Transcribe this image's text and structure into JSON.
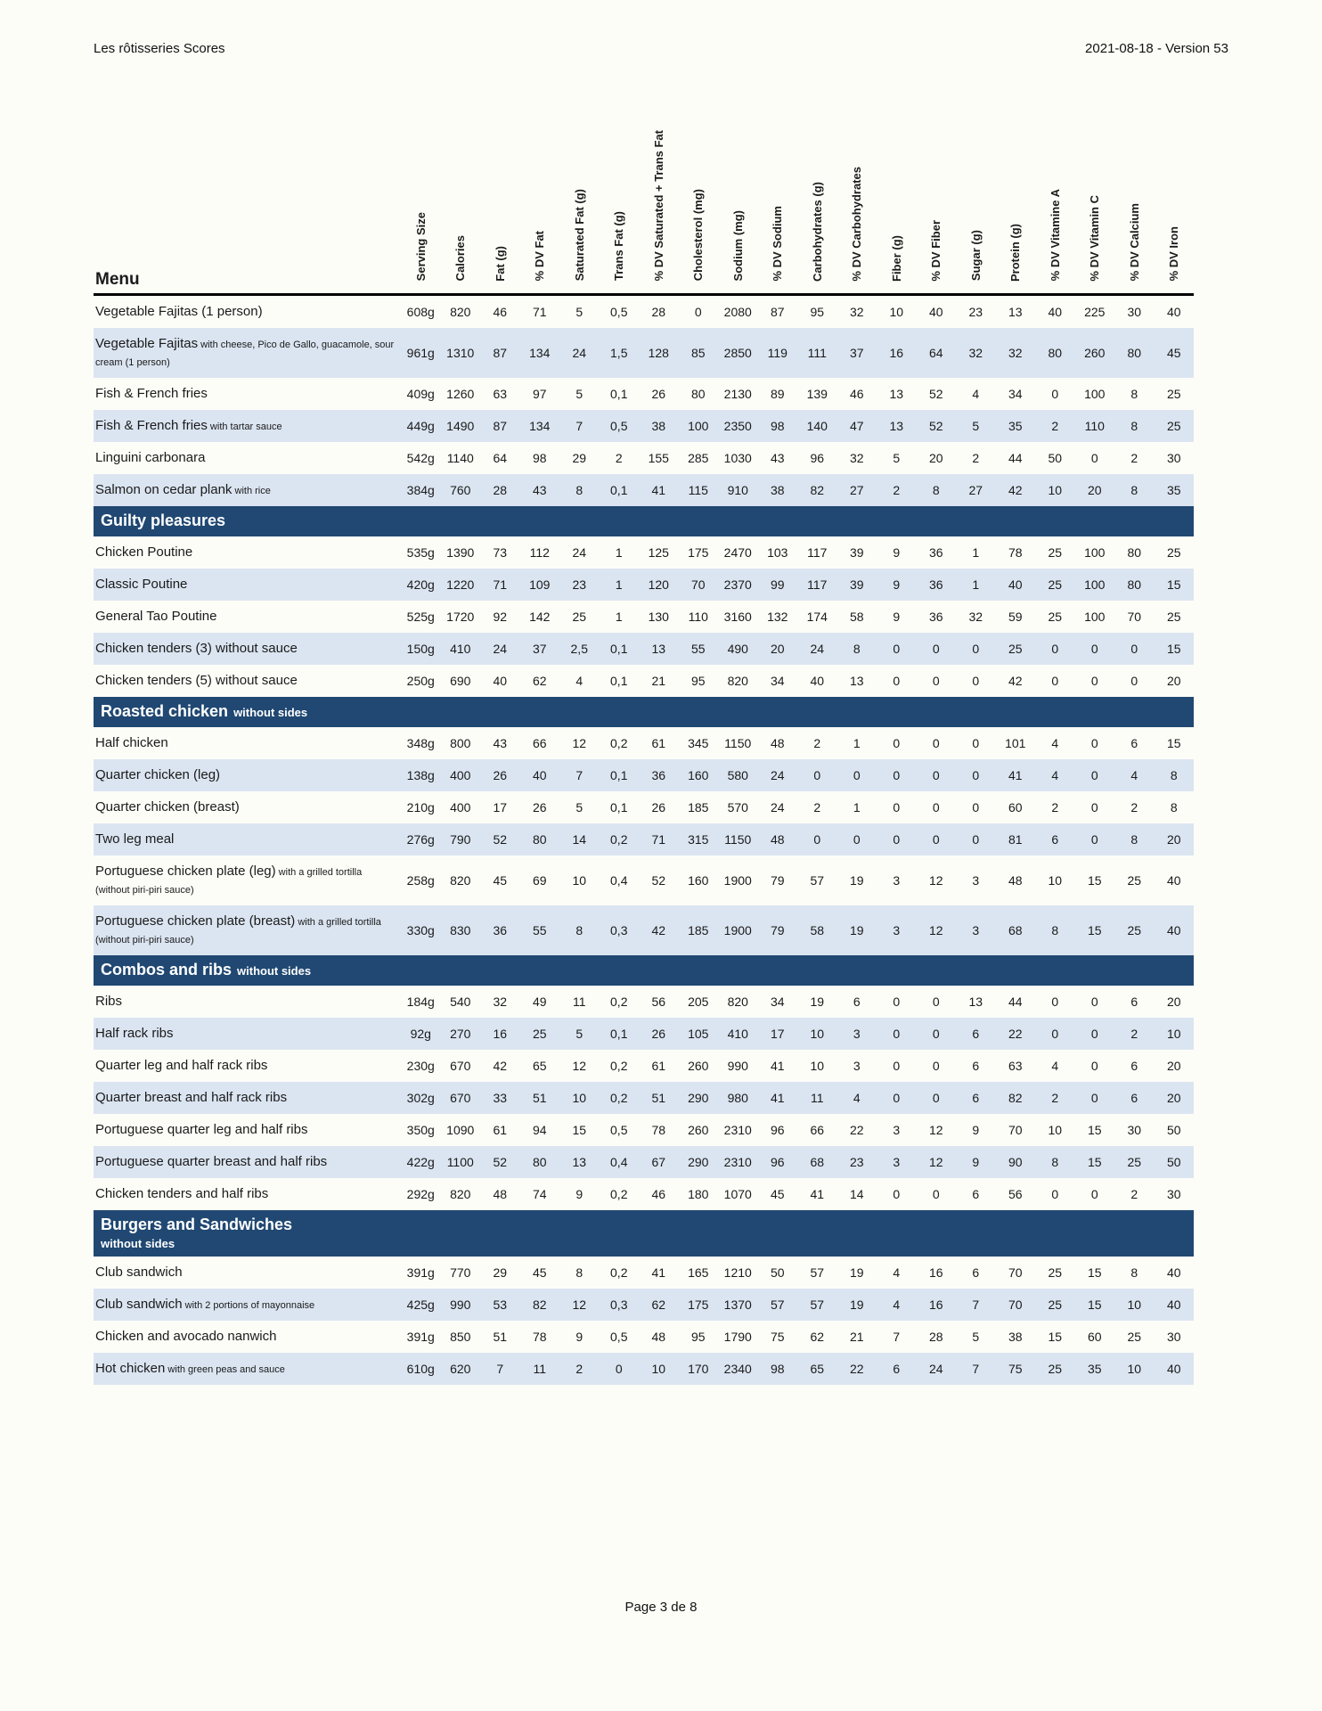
{
  "page_header": {
    "title": "Les rôtisseries Scores",
    "date_version": "2021-08-18 - Version 53"
  },
  "table": {
    "menu_label": "Menu",
    "columns": [
      "Serving Size",
      "Calories",
      "Fat (g)",
      "% DV Fat",
      "Saturated Fat (g)",
      "Trans Fat (g)",
      "% DV Saturated + Trans Fat",
      "Cholesterol (mg)",
      "Sodium (mg)",
      "% DV Sodium",
      "Carbohydrates (g)",
      "% DV Carbohydrates",
      "Fiber (g)",
      "% DV Fiber",
      "Sugar (g)",
      "Protein (g)",
      "% DV Vitamine A",
      "% DV Vitamin C",
      "% DV Calcium",
      "% DV Iron"
    ],
    "sections": [
      {
        "header": null,
        "rows": [
          {
            "name": "Vegetable Fajitas (1 person)",
            "note": "",
            "values": [
              "608g",
              "820",
              "46",
              "71",
              "5",
              "0,5",
              "28",
              "0",
              "2080",
              "87",
              "95",
              "32",
              "10",
              "40",
              "23",
              "13",
              "40",
              "225",
              "30",
              "40"
            ]
          },
          {
            "name": "Vegetable Fajitas",
            "note": "with cheese, Pico de Gallo, guacamole, sour cream (1 person)",
            "values": [
              "961g",
              "1310",
              "87",
              "134",
              "24",
              "1,5",
              "128",
              "85",
              "2850",
              "119",
              "111",
              "37",
              "16",
              "64",
              "32",
              "32",
              "80",
              "260",
              "80",
              "45"
            ]
          },
          {
            "name": "Fish & French fries",
            "note": "",
            "values": [
              "409g",
              "1260",
              "63",
              "97",
              "5",
              "0,1",
              "26",
              "80",
              "2130",
              "89",
              "139",
              "46",
              "13",
              "52",
              "4",
              "34",
              "0",
              "100",
              "8",
              "25"
            ]
          },
          {
            "name": "Fish & French fries",
            "note": "with tartar sauce",
            "values": [
              "449g",
              "1490",
              "87",
              "134",
              "7",
              "0,5",
              "38",
              "100",
              "2350",
              "98",
              "140",
              "47",
              "13",
              "52",
              "5",
              "35",
              "2",
              "110",
              "8",
              "25"
            ]
          },
          {
            "name": "Linguini carbonara",
            "note": "",
            "values": [
              "542g",
              "1140",
              "64",
              "98",
              "29",
              "2",
              "155",
              "285",
              "1030",
              "43",
              "96",
              "32",
              "5",
              "20",
              "2",
              "44",
              "50",
              "0",
              "2",
              "30"
            ]
          },
          {
            "name": "Salmon on cedar plank",
            "note": "with rice",
            "values": [
              "384g",
              "760",
              "28",
              "43",
              "8",
              "0,1",
              "41",
              "115",
              "910",
              "38",
              "82",
              "27",
              "2",
              "8",
              "27",
              "42",
              "10",
              "20",
              "8",
              "35"
            ]
          }
        ]
      },
      {
        "header": {
          "title": "Guilty pleasures",
          "suffix": "",
          "two_lines": false
        },
        "rows": [
          {
            "name": "Chicken Poutine",
            "note": "",
            "values": [
              "535g",
              "1390",
              "73",
              "112",
              "24",
              "1",
              "125",
              "175",
              "2470",
              "103",
              "117",
              "39",
              "9",
              "36",
              "1",
              "78",
              "25",
              "100",
              "80",
              "25"
            ]
          },
          {
            "name": "Classic Poutine",
            "note": "",
            "values": [
              "420g",
              "1220",
              "71",
              "109",
              "23",
              "1",
              "120",
              "70",
              "2370",
              "99",
              "117",
              "39",
              "9",
              "36",
              "1",
              "40",
              "25",
              "100",
              "80",
              "15"
            ]
          },
          {
            "name": "General Tao Poutine",
            "note": "",
            "values": [
              "525g",
              "1720",
              "92",
              "142",
              "25",
              "1",
              "130",
              "110",
              "3160",
              "132",
              "174",
              "58",
              "9",
              "36",
              "32",
              "59",
              "25",
              "100",
              "70",
              "25"
            ]
          },
          {
            "name": "Chicken tenders (3) without sauce",
            "note": "",
            "values": [
              "150g",
              "410",
              "24",
              "37",
              "2,5",
              "0,1",
              "13",
              "55",
              "490",
              "20",
              "24",
              "8",
              "0",
              "0",
              "0",
              "25",
              "0",
              "0",
              "0",
              "15"
            ]
          },
          {
            "name": "Chicken tenders (5) without sauce",
            "note": "",
            "values": [
              "250g",
              "690",
              "40",
              "62",
              "4",
              "0,1",
              "21",
              "95",
              "820",
              "34",
              "40",
              "13",
              "0",
              "0",
              "0",
              "42",
              "0",
              "0",
              "0",
              "20"
            ]
          }
        ]
      },
      {
        "header": {
          "title": "Roasted chicken",
          "suffix": "without sides",
          "two_lines": false
        },
        "rows": [
          {
            "name": "Half chicken",
            "note": "",
            "values": [
              "348g",
              "800",
              "43",
              "66",
              "12",
              "0,2",
              "61",
              "345",
              "1150",
              "48",
              "2",
              "1",
              "0",
              "0",
              "0",
              "101",
              "4",
              "0",
              "6",
              "15"
            ]
          },
          {
            "name": "Quarter chicken (leg)",
            "note": "",
            "values": [
              "138g",
              "400",
              "26",
              "40",
              "7",
              "0,1",
              "36",
              "160",
              "580",
              "24",
              "0",
              "0",
              "0",
              "0",
              "0",
              "41",
              "4",
              "0",
              "4",
              "8"
            ]
          },
          {
            "name": "Quarter chicken (breast)",
            "note": "",
            "values": [
              "210g",
              "400",
              "17",
              "26",
              "5",
              "0,1",
              "26",
              "185",
              "570",
              "24",
              "2",
              "1",
              "0",
              "0",
              "0",
              "60",
              "2",
              "0",
              "2",
              "8"
            ]
          },
          {
            "name": "Two leg meal",
            "note": "",
            "values": [
              "276g",
              "790",
              "52",
              "80",
              "14",
              "0,2",
              "71",
              "315",
              "1150",
              "48",
              "0",
              "0",
              "0",
              "0",
              "0",
              "81",
              "6",
              "0",
              "8",
              "20"
            ]
          },
          {
            "name": "Portuguese chicken plate (leg)",
            "note": "with a grilled tortilla (without piri-piri sauce)",
            "values": [
              "258g",
              "820",
              "45",
              "69",
              "10",
              "0,4",
              "52",
              "160",
              "1900",
              "79",
              "57",
              "19",
              "3",
              "12",
              "3",
              "48",
              "10",
              "15",
              "25",
              "40"
            ]
          },
          {
            "name": "Portuguese chicken plate (breast)",
            "note": "with a grilled tortilla (without piri-piri sauce)",
            "values": [
              "330g",
              "830",
              "36",
              "55",
              "8",
              "0,3",
              "42",
              "185",
              "1900",
              "79",
              "58",
              "19",
              "3",
              "12",
              "3",
              "68",
              "8",
              "15",
              "25",
              "40"
            ]
          }
        ]
      },
      {
        "header": {
          "title": "Combos and ribs",
          "suffix": "without sides",
          "two_lines": false
        },
        "rows": [
          {
            "name": "Ribs",
            "note": "",
            "values": [
              "184g",
              "540",
              "32",
              "49",
              "11",
              "0,2",
              "56",
              "205",
              "820",
              "34",
              "19",
              "6",
              "0",
              "0",
              "13",
              "44",
              "0",
              "0",
              "6",
              "20"
            ]
          },
          {
            "name": "Half rack ribs",
            "note": "",
            "values": [
              "92g",
              "270",
              "16",
              "25",
              "5",
              "0,1",
              "26",
              "105",
              "410",
              "17",
              "10",
              "3",
              "0",
              "0",
              "6",
              "22",
              "0",
              "0",
              "2",
              "10"
            ]
          },
          {
            "name": "Quarter leg and half rack ribs",
            "note": "",
            "values": [
              "230g",
              "670",
              "42",
              "65",
              "12",
              "0,2",
              "61",
              "260",
              "990",
              "41",
              "10",
              "3",
              "0",
              "0",
              "6",
              "63",
              "4",
              "0",
              "6",
              "20"
            ]
          },
          {
            "name": "Quarter breast and half rack ribs",
            "note": "",
            "values": [
              "302g",
              "670",
              "33",
              "51",
              "10",
              "0,2",
              "51",
              "290",
              "980",
              "41",
              "11",
              "4",
              "0",
              "0",
              "6",
              "82",
              "2",
              "0",
              "6",
              "20"
            ]
          },
          {
            "name": "Portuguese quarter leg and half ribs",
            "note": "",
            "values": [
              "350g",
              "1090",
              "61",
              "94",
              "15",
              "0,5",
              "78",
              "260",
              "2310",
              "96",
              "66",
              "22",
              "3",
              "12",
              "9",
              "70",
              "10",
              "15",
              "30",
              "50"
            ]
          },
          {
            "name": "Portuguese quarter breast and half ribs",
            "note": "",
            "values": [
              "422g",
              "1100",
              "52",
              "80",
              "13",
              "0,4",
              "67",
              "290",
              "2310",
              "96",
              "68",
              "23",
              "3",
              "12",
              "9",
              "90",
              "8",
              "15",
              "25",
              "50"
            ]
          },
          {
            "name": "Chicken tenders and half ribs",
            "note": "",
            "values": [
              "292g",
              "820",
              "48",
              "74",
              "9",
              "0,2",
              "46",
              "180",
              "1070",
              "45",
              "41",
              "14",
              "0",
              "0",
              "6",
              "56",
              "0",
              "0",
              "2",
              "30"
            ]
          }
        ]
      },
      {
        "header": {
          "title": "Burgers and Sandwiches",
          "suffix": "without sides",
          "two_lines": true
        },
        "rows": [
          {
            "name": "Club sandwich",
            "note": "",
            "values": [
              "391g",
              "770",
              "29",
              "45",
              "8",
              "0,2",
              "41",
              "165",
              "1210",
              "50",
              "57",
              "19",
              "4",
              "16",
              "6",
              "70",
              "25",
              "15",
              "8",
              "40"
            ]
          },
          {
            "name": "Club sandwich",
            "note": "with 2 portions of mayonnaise",
            "values": [
              "425g",
              "990",
              "53",
              "82",
              "12",
              "0,3",
              "62",
              "175",
              "1370",
              "57",
              "57",
              "19",
              "4",
              "16",
              "7",
              "70",
              "25",
              "15",
              "10",
              "40"
            ]
          },
          {
            "name": "Chicken and avocado nanwich",
            "note": "",
            "values": [
              "391g",
              "850",
              "51",
              "78",
              "9",
              "0,5",
              "48",
              "95",
              "1790",
              "75",
              "62",
              "21",
              "7",
              "28",
              "5",
              "38",
              "15",
              "60",
              "25",
              "30"
            ]
          },
          {
            "name": "Hot chicken",
            "note": "with green peas and sauce",
            "values": [
              "610g",
              "620",
              "7",
              "11",
              "2",
              "0",
              "10",
              "170",
              "2340",
              "98",
              "65",
              "22",
              "6",
              "24",
              "7",
              "75",
              "25",
              "35",
              "10",
              "40"
            ]
          }
        ]
      }
    ]
  },
  "footer": {
    "page": "Page 3 de 8"
  }
}
